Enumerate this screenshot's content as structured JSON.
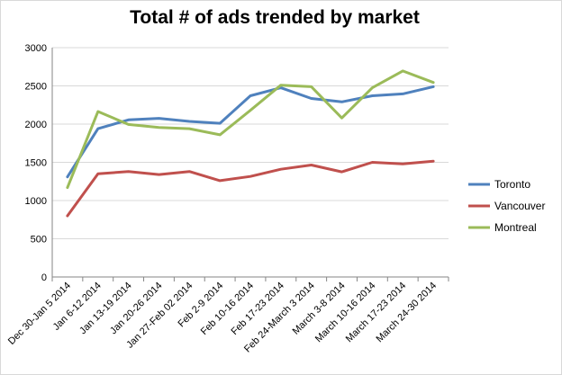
{
  "chart_data": {
    "type": "line",
    "title": "Total # of ads trended by market",
    "xlabel": "",
    "ylabel": "",
    "ylim": [
      0,
      3000
    ],
    "yticks": [
      0,
      500,
      1000,
      1500,
      2000,
      2500,
      3000
    ],
    "grid": "horizontal",
    "legend_position": "right",
    "categories": [
      "Dec 30-Jan 5 2014",
      "Jan 6-12 2014",
      "Jan 13-19 2014",
      "Jan 20-26 2014",
      "Jan 27-Feb 02 2014",
      "Feb 2-9 2014",
      "Feb 10-16 2014",
      "Feb 17-23 2014",
      "Feb 24-March 3 2014",
      "March 3-8 2014",
      "March 10-16 2014",
      "March 17-23 2014",
      "March 24-30 2014"
    ],
    "series": [
      {
        "name": "Toronto",
        "color": "#4f81bd",
        "values": [
          1310,
          1940,
          2055,
          2075,
          2035,
          2010,
          2370,
          2475,
          2335,
          2290,
          2370,
          2395,
          2490
        ]
      },
      {
        "name": "Vancouver",
        "color": "#c0504d",
        "values": [
          800,
          1350,
          1380,
          1340,
          1380,
          1260,
          1315,
          1410,
          1465,
          1375,
          1500,
          1480,
          1515
        ]
      },
      {
        "name": "Montreal",
        "color": "#9bbb59",
        "values": [
          1170,
          2165,
          1995,
          1955,
          1940,
          1860,
          2180,
          2510,
          2490,
          2080,
          2475,
          2695,
          2545
        ]
      }
    ]
  }
}
